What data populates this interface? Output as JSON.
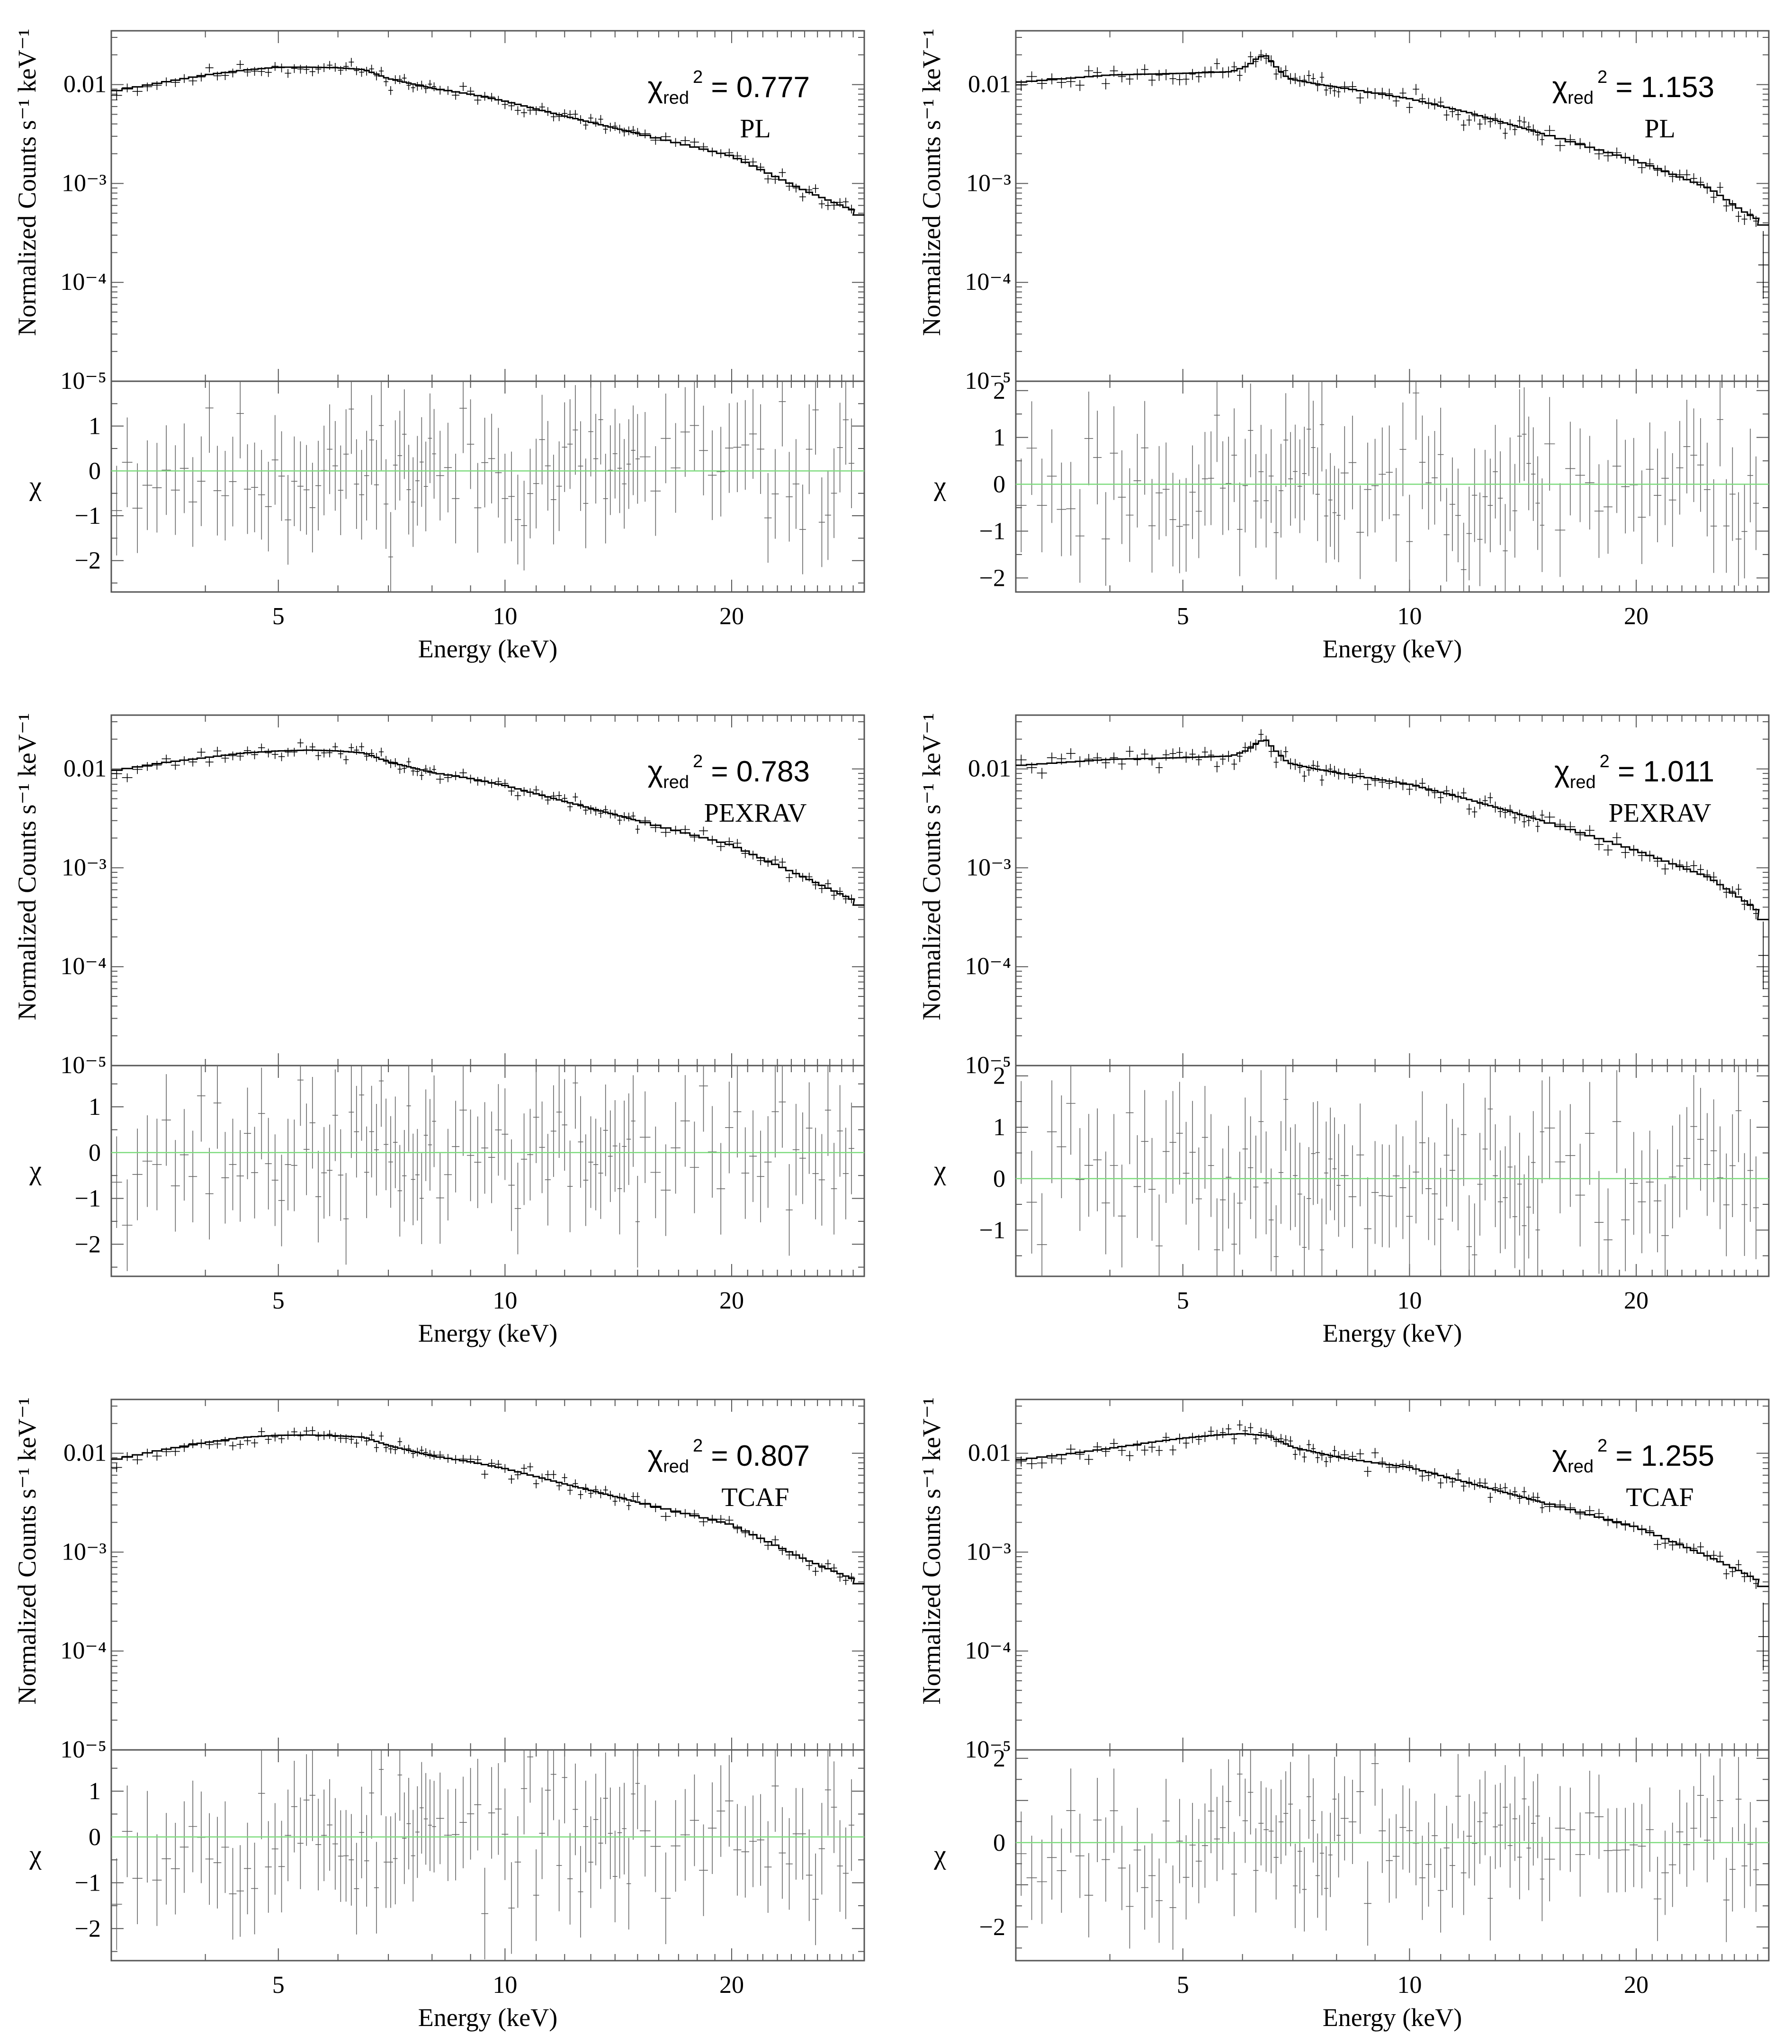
{
  "figure": {
    "ylabel_top": "Normalized Counts s⁻¹ keV⁻¹",
    "ylabel_bottom": "χ",
    "xlabel": "Energy (keV)",
    "colors": {
      "data": "#000000",
      "model": "#000000",
      "residual_err": "#666666",
      "zero_line": "#7ddc7d",
      "frame": "#555555"
    }
  },
  "chart_data": [
    {
      "type": "line",
      "model": "PL",
      "chi2_value": "0.777",
      "xscale": "log",
      "xlim": [
        3.0,
        30.0
      ],
      "xticks": [
        5,
        10,
        20
      ],
      "yscale_top": "log",
      "ylim_top": [
        1e-05,
        0.035
      ],
      "yticks_top": [
        {
          "v": 0.01,
          "t": "0.01"
        },
        {
          "v": 0.001,
          "t": "10⁻³"
        },
        {
          "v": 0.0001,
          "t": "10⁻⁴"
        },
        {
          "v": 1e-05,
          "t": "10⁻⁵"
        }
      ],
      "ylim_resid": [
        -2.7,
        2.0
      ],
      "yticks_resid": [
        1,
        0,
        -1,
        -2
      ],
      "model_curve": {
        "x": [
          3.0,
          3.5,
          4.0,
          4.5,
          5.0,
          5.5,
          6.0,
          6.5,
          7.0,
          8.0,
          9.0,
          10.0,
          12.0,
          15.0,
          20.0,
          25.0,
          30.0
        ],
        "y": [
          0.0085,
          0.0105,
          0.0125,
          0.014,
          0.015,
          0.015,
          0.0148,
          0.0142,
          0.0115,
          0.0092,
          0.008,
          0.0068,
          0.0048,
          0.0032,
          0.0019,
          0.00085,
          0.00048
        ]
      },
      "scatter": 0.12,
      "seed": 11,
      "extra_point": null
    },
    {
      "type": "line",
      "model": "PL",
      "chi2_value": "1.153",
      "xscale": "log",
      "xlim": [
        3.0,
        30.0
      ],
      "xticks": [
        5,
        10,
        20
      ],
      "yscale_top": "log",
      "ylim_top": [
        1e-05,
        0.035
      ],
      "yticks_top": [
        {
          "v": 0.01,
          "t": "0.01"
        },
        {
          "v": 0.001,
          "t": "10⁻³"
        },
        {
          "v": 0.0001,
          "t": "10⁻⁴"
        },
        {
          "v": 1e-05,
          "t": "10⁻⁵"
        }
      ],
      "ylim_resid": [
        -2.3,
        2.2
      ],
      "yticks_resid": [
        2,
        1,
        0,
        -1,
        -2
      ],
      "model_curve": {
        "x": [
          3.0,
          4.0,
          5.0,
          5.8,
          6.1,
          6.3,
          6.45,
          6.6,
          6.9,
          7.5,
          8.5,
          10.0,
          12.0,
          15.0,
          20.0,
          25.0,
          28.0,
          30.0
        ],
        "y": [
          0.0105,
          0.0125,
          0.013,
          0.0135,
          0.0155,
          0.019,
          0.0195,
          0.016,
          0.0115,
          0.0102,
          0.0088,
          0.0072,
          0.0052,
          0.0032,
          0.0017,
          0.0009,
          0.0005,
          0.00038
        ]
      },
      "scatter": 0.15,
      "seed": 23,
      "extra_point": [
        29.5,
        0.00015
      ]
    },
    {
      "type": "line",
      "model": "PEXRAV",
      "chi2_value": "0.783",
      "xscale": "log",
      "xlim": [
        3.0,
        30.0
      ],
      "xticks": [
        5,
        10,
        20
      ],
      "yscale_top": "log",
      "ylim_top": [
        1e-05,
        0.035
      ],
      "yticks_top": [
        {
          "v": 0.01,
          "t": "0.01"
        },
        {
          "v": 0.001,
          "t": "10⁻³"
        },
        {
          "v": 0.0001,
          "t": "10⁻⁴"
        },
        {
          "v": 1e-05,
          "t": "10⁻⁵"
        }
      ],
      "ylim_resid": [
        -2.7,
        1.9
      ],
      "yticks_resid": [
        1,
        0,
        -1,
        -2
      ],
      "model_curve": {
        "x": [
          3.0,
          3.5,
          4.0,
          4.5,
          5.0,
          5.5,
          6.0,
          6.5,
          7.0,
          8.0,
          9.0,
          10.0,
          12.0,
          15.0,
          20.0,
          25.0,
          30.0
        ],
        "y": [
          0.0095,
          0.0115,
          0.013,
          0.0145,
          0.0152,
          0.0155,
          0.0152,
          0.0145,
          0.0118,
          0.0092,
          0.008,
          0.0068,
          0.0047,
          0.003,
          0.0017,
          0.0008,
          0.00042
        ]
      },
      "scatter": 0.12,
      "seed": 37,
      "extra_point": null
    },
    {
      "type": "line",
      "model": "PEXRAV",
      "chi2_value": "1.011",
      "xscale": "log",
      "xlim": [
        3.0,
        30.0
      ],
      "xticks": [
        5,
        10,
        20
      ],
      "yscale_top": "log",
      "ylim_top": [
        1e-05,
        0.035
      ],
      "yticks_top": [
        {
          "v": 0.01,
          "t": "0.01"
        },
        {
          "v": 0.001,
          "t": "10⁻³"
        },
        {
          "v": 0.0001,
          "t": "10⁻⁴"
        },
        {
          "v": 1e-05,
          "t": "10⁻⁵"
        }
      ],
      "ylim_resid": [
        -1.9,
        2.2
      ],
      "yticks_resid": [
        2,
        1,
        0,
        -1
      ],
      "model_curve": {
        "x": [
          3.0,
          4.0,
          5.0,
          5.8,
          6.1,
          6.3,
          6.45,
          6.6,
          6.9,
          7.5,
          8.5,
          10.0,
          12.0,
          15.0,
          20.0,
          25.0,
          28.0,
          30.0
        ],
        "y": [
          0.0108,
          0.0125,
          0.013,
          0.0135,
          0.0155,
          0.019,
          0.0195,
          0.016,
          0.0115,
          0.01,
          0.0085,
          0.007,
          0.0049,
          0.003,
          0.0015,
          0.0008,
          0.00045,
          0.0003
        ]
      },
      "scatter": 0.15,
      "seed": 41,
      "extra_point": [
        29.5,
        0.00013
      ]
    },
    {
      "type": "line",
      "model": "TCAF",
      "chi2_value": "0.807",
      "xscale": "log",
      "xlim": [
        3.0,
        30.0
      ],
      "xticks": [
        5,
        10,
        20
      ],
      "yscale_top": "log",
      "ylim_top": [
        1e-05,
        0.035
      ],
      "yticks_top": [
        {
          "v": 0.01,
          "t": "0.01"
        },
        {
          "v": 0.001,
          "t": "10⁻³"
        },
        {
          "v": 0.0001,
          "t": "10⁻⁴"
        },
        {
          "v": 1e-05,
          "t": "10⁻⁵"
        }
      ],
      "ylim_resid": [
        -2.7,
        1.9
      ],
      "yticks_resid": [
        1,
        0,
        -1,
        -2
      ],
      "model_curve": {
        "x": [
          3.0,
          3.5,
          4.0,
          4.5,
          5.0,
          5.5,
          6.0,
          6.5,
          7.0,
          8.0,
          9.0,
          10.0,
          12.0,
          15.0,
          20.0,
          25.0,
          30.0
        ],
        "y": [
          0.0085,
          0.0108,
          0.0128,
          0.0145,
          0.0152,
          0.0153,
          0.015,
          0.0145,
          0.012,
          0.0094,
          0.0082,
          0.007,
          0.0049,
          0.0032,
          0.0019,
          0.00085,
          0.00048
        ]
      },
      "scatter": 0.12,
      "seed": 53,
      "extra_point": null
    },
    {
      "type": "line",
      "model": "TCAF",
      "chi2_value": "1.255",
      "xscale": "log",
      "xlim": [
        3.0,
        30.0
      ],
      "xticks": [
        5,
        10,
        20
      ],
      "yscale_top": "log",
      "ylim_top": [
        1e-05,
        0.035
      ],
      "yticks_top": [
        {
          "v": 0.01,
          "t": "0.01"
        },
        {
          "v": 0.001,
          "t": "10⁻³"
        },
        {
          "v": 0.0001,
          "t": "10⁻⁴"
        },
        {
          "v": 1e-05,
          "t": "10⁻⁵"
        }
      ],
      "ylim_resid": [
        -2.8,
        2.2
      ],
      "yticks_resid": [
        2,
        0,
        -2
      ],
      "model_curve": {
        "x": [
          3.0,
          3.5,
          4.0,
          4.5,
          5.0,
          5.5,
          6.0,
          6.5,
          7.0,
          8.0,
          9.0,
          10.0,
          12.0,
          15.0,
          20.0,
          25.0,
          28.0,
          30.0
        ],
        "y": [
          0.0085,
          0.0098,
          0.0112,
          0.0128,
          0.0142,
          0.0152,
          0.0158,
          0.015,
          0.0115,
          0.0092,
          0.008,
          0.0072,
          0.005,
          0.0032,
          0.0018,
          0.0009,
          0.0006,
          0.00045
        ]
      },
      "scatter": 0.14,
      "seed": 67,
      "extra_point": [
        29.5,
        0.00014
      ]
    }
  ]
}
